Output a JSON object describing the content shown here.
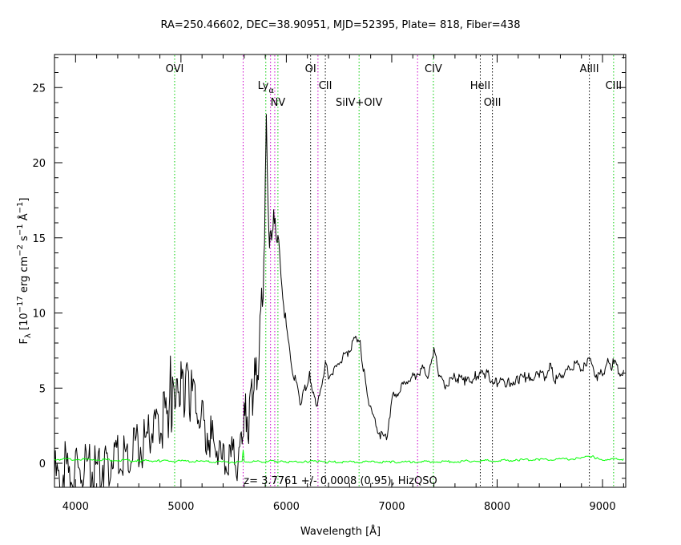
{
  "chart_data": {
    "type": "line",
    "title": "RA=250.46602, DEC=38.90951, MJD=52395, Plate= 818, Fiber=438",
    "xlabel": "Wavelength [Å]",
    "ylabel": {
      "base": "F",
      "sub": "λ",
      "pre": " [10",
      "exp1": "−17",
      "mid1": " erg cm",
      "exp2": "−2",
      "mid2": " s",
      "exp3": "−1",
      "mid3": " Å",
      "exp4": "−1",
      "post": "]"
    },
    "annotation": "z= 3.7761 +/- 0.0008 (0.95), HizQSO",
    "xlim": [
      3800,
      9220
    ],
    "ylim": [
      -1.6,
      27.2
    ],
    "x_ticks": [
      4000,
      5000,
      6000,
      7000,
      8000,
      9000
    ],
    "y_ticks": [
      0,
      5,
      10,
      15,
      20,
      25
    ],
    "colors": {
      "flux": "#000000",
      "error": "#00ff00",
      "emission": "#00cc00",
      "absorption": "#000000",
      "sky": "#cc00cc"
    },
    "lines": [
      {
        "label": "OVI",
        "x": 4940,
        "kind": "emission",
        "level": 1
      },
      {
        "label": "",
        "x": 5590,
        "kind": "sky",
        "level": 0
      },
      {
        "label": "Ly",
        "sub": "α",
        "x": 5805,
        "kind": "emission",
        "level": 2
      },
      {
        "label": "",
        "x": 5850,
        "kind": "sky",
        "level": 0
      },
      {
        "label": "NV",
        "x": 5920,
        "kind": "emission",
        "level": 3
      },
      {
        "label": "",
        "x": 5890,
        "kind": "sky",
        "level": 0
      },
      {
        "label": "OI",
        "x": 6230,
        "kind": "absorption",
        "level": 1
      },
      {
        "label": "",
        "x": 6300,
        "kind": "sky",
        "level": 0
      },
      {
        "label": "CII",
        "x": 6370,
        "kind": "absorption",
        "level": 2
      },
      {
        "label": "SiIV+OIV",
        "x": 6690,
        "kind": "emission",
        "level": 3
      },
      {
        "label": "",
        "x": 7245,
        "kind": "sky",
        "level": 0
      },
      {
        "label": "CIV",
        "x": 7395,
        "kind": "emission",
        "level": 1
      },
      {
        "label": "HeII",
        "x": 7840,
        "kind": "absorption",
        "level": 2
      },
      {
        "label": "OIII",
        "x": 7955,
        "kind": "absorption",
        "level": 3
      },
      {
        "label": "AlIII",
        "x": 8875,
        "kind": "absorption",
        "level": 1
      },
      {
        "label": "CIII",
        "x": 9105,
        "kind": "emission",
        "level": 2
      }
    ],
    "series": [
      {
        "role": "flux",
        "x": [
          3800,
          3850,
          3900,
          3950,
          4000,
          4050,
          4100,
          4150,
          4200,
          4250,
          4300,
          4350,
          4400,
          4450,
          4500,
          4550,
          4600,
          4650,
          4700,
          4750,
          4800,
          4850,
          4880,
          4900,
          4910,
          4920,
          4950,
          4980,
          5000,
          5030,
          5050,
          5080,
          5100,
          5150,
          5200,
          5250,
          5300,
          5350,
          5400,
          5450,
          5500,
          5550,
          5580,
          5600,
          5620,
          5650,
          5680,
          5700,
          5720,
          5750,
          5780,
          5800,
          5810,
          5820,
          5840,
          5860,
          5880,
          5900,
          5920,
          5950,
          6000,
          6050,
          6100,
          6130,
          6160,
          6200,
          6220,
          6250,
          6280,
          6300,
          6330,
          6370,
          6400,
          6450,
          6500,
          6550,
          6600,
          6650,
          6680,
          6700,
          6730,
          6760,
          6800,
          6850,
          6900,
          6950,
          7000,
          7050,
          7100,
          7150,
          7200,
          7250,
          7300,
          7350,
          7380,
          7400,
          7430,
          7460,
          7500,
          7550,
          7600,
          7700,
          7800,
          7900,
          8000,
          8100,
          8200,
          8300,
          8400,
          8450,
          8500,
          8530,
          8560,
          8600,
          8650,
          8700,
          8750,
          8800,
          8850,
          8870,
          8900,
          8950,
          9000,
          9050,
          9080,
          9100,
          9150,
          9200
        ],
        "y": [
          0.2,
          -0.5,
          0.6,
          -0.3,
          0.5,
          0.0,
          0.9,
          0.3,
          0.6,
          1.0,
          0.7,
          1.2,
          1.0,
          1.6,
          1.3,
          2.0,
          1.8,
          2.4,
          3.0,
          3.6,
          3.1,
          4.2,
          3.8,
          6.5,
          4.5,
          5.4,
          6.3,
          5.0,
          6.7,
          5.6,
          7.1,
          5.2,
          5.8,
          4.8,
          3.5,
          3.0,
          2.2,
          1.8,
          0.9,
          1.4,
          1.0,
          1.6,
          2.6,
          3.4,
          4.2,
          3.6,
          5.8,
          6.3,
          6.8,
          9.2,
          13.5,
          18.5,
          24.2,
          19.5,
          15.0,
          15.5,
          16.6,
          15.8,
          15.0,
          13.0,
          9.0,
          6.8,
          5.2,
          4.3,
          4.8,
          5.5,
          6.1,
          4.9,
          4.2,
          4.0,
          5.3,
          6.8,
          6.0,
          6.2,
          7.0,
          7.3,
          7.8,
          8.3,
          8.6,
          8.1,
          6.5,
          5.0,
          3.8,
          2.7,
          2.0,
          1.9,
          4.4,
          4.9,
          5.3,
          5.7,
          5.9,
          6.3,
          6.5,
          6.1,
          7.0,
          7.8,
          6.8,
          5.8,
          5.4,
          5.6,
          5.9,
          5.6,
          6.0,
          6.1,
          5.5,
          5.6,
          5.7,
          6.0,
          6.1,
          5.9,
          6.8,
          6.1,
          5.7,
          6.1,
          6.2,
          6.5,
          6.8,
          6.5,
          6.6,
          7.3,
          6.7,
          6.0,
          6.1,
          7.0,
          6.6,
          6.9,
          6.3,
          6.2
        ]
      },
      {
        "role": "error",
        "x": [
          3800,
          4000,
          4200,
          4400,
          4600,
          4800,
          5000,
          5200,
          5400,
          5580,
          5590,
          5600,
          5800,
          5850,
          5900,
          6000,
          6200,
          6300,
          6400,
          6600,
          6800,
          7000,
          7200,
          7400,
          7600,
          7800,
          8000,
          8200,
          8400,
          8600,
          8800,
          8850,
          8900,
          8950,
          9000,
          9200
        ],
        "y": [
          0.3,
          0.3,
          0.3,
          0.25,
          0.2,
          0.2,
          0.18,
          0.15,
          0.12,
          0.12,
          0.9,
          0.15,
          0.15,
          0.3,
          0.18,
          0.1,
          0.15,
          0.15,
          0.12,
          0.12,
          0.12,
          0.12,
          0.12,
          0.15,
          0.15,
          0.2,
          0.22,
          0.25,
          0.3,
          0.3,
          0.35,
          0.45,
          0.5,
          0.35,
          0.3,
          0.3
        ]
      }
    ]
  }
}
